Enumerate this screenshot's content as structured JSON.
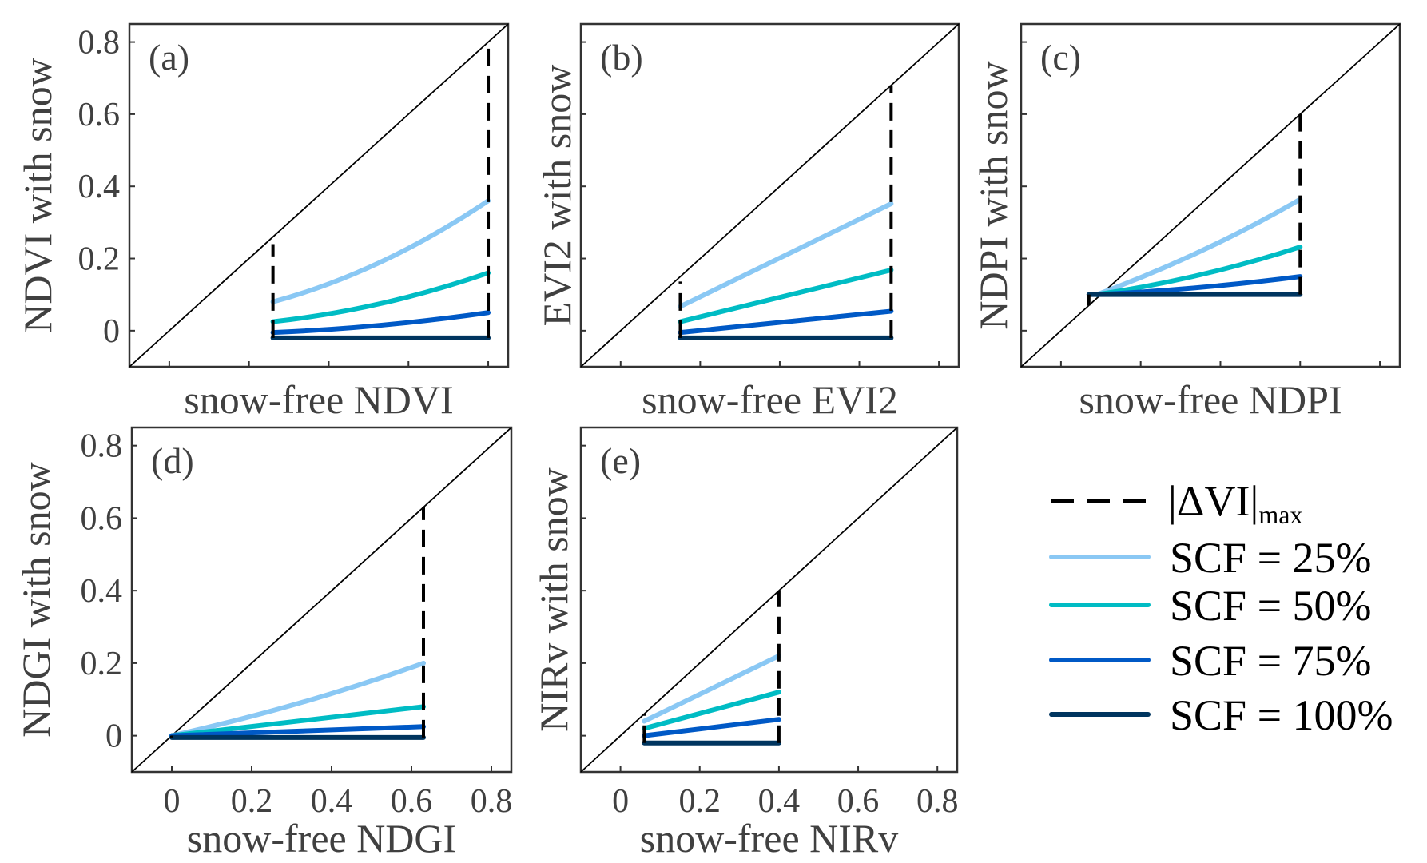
{
  "chart_data": [
    {
      "type": "line",
      "panel": "(a)",
      "xlabel": "snow-free NDVI",
      "ylabel": "NDVI with snow",
      "xlim": [
        -0.1,
        0.85
      ],
      "ylim": [
        -0.1,
        0.85
      ],
      "xticks": [
        0,
        0.2,
        0.4,
        0.6,
        0.8
      ],
      "yticks": [
        0,
        0.2,
        0.4,
        0.6,
        0.8
      ],
      "show_xtick_labels": false,
      "show_ytick_labels": true,
      "reference": "1:1",
      "dashed": [
        {
          "x": 0.26,
          "y": [
            -0.02,
            0.24
          ]
        },
        {
          "x": 0.8,
          "y": [
            -0.02,
            0.8
          ]
        }
      ],
      "series": [
        {
          "name": "SCF = 25%",
          "x": [
            0.26,
            0.53,
            0.8
          ],
          "y": [
            0.08,
            0.19,
            0.36
          ]
        },
        {
          "name": "SCF = 50%",
          "x": [
            0.26,
            0.53,
            0.8
          ],
          "y": [
            0.025,
            0.075,
            0.16
          ]
        },
        {
          "name": "SCF = 75%",
          "x": [
            0.26,
            0.53,
            0.8
          ],
          "y": [
            -0.005,
            0.015,
            0.05
          ]
        },
        {
          "name": "SCF = 100%",
          "x": [
            0.26,
            0.8
          ],
          "y": [
            -0.02,
            -0.02
          ]
        }
      ]
    },
    {
      "type": "line",
      "panel": "(b)",
      "xlabel": "snow-free EVI2",
      "ylabel": "EVI2 with snow",
      "xlim": [
        -0.1,
        0.85
      ],
      "ylim": [
        -0.1,
        0.85
      ],
      "xticks": [
        0,
        0.2,
        0.4,
        0.6,
        0.8
      ],
      "yticks": [
        0,
        0.2,
        0.4,
        0.6,
        0.8
      ],
      "show_xtick_labels": false,
      "show_ytick_labels": false,
      "reference": "1:1",
      "dashed": [
        {
          "x": 0.15,
          "y": [
            -0.02,
            0.136
          ]
        },
        {
          "x": 0.68,
          "y": [
            -0.02,
            0.68
          ]
        }
      ],
      "series": [
        {
          "name": "SCF = 25%",
          "x": [
            0.15,
            0.68
          ],
          "y": [
            0.067,
            0.352
          ]
        },
        {
          "name": "SCF = 50%",
          "x": [
            0.15,
            0.68
          ],
          "y": [
            0.025,
            0.168
          ]
        },
        {
          "name": "SCF = 75%",
          "x": [
            0.15,
            0.68
          ],
          "y": [
            -0.005,
            0.054
          ]
        },
        {
          "name": "SCF = 100%",
          "x": [
            0.15,
            0.68
          ],
          "y": [
            -0.02,
            -0.02
          ]
        }
      ]
    },
    {
      "type": "line",
      "panel": "(c)",
      "xlabel": "snow-free NDPI",
      "ylabel": "NDPI with snow",
      "xlim": [
        -0.1,
        0.85
      ],
      "ylim": [
        -0.1,
        0.85
      ],
      "xticks": [
        0,
        0.2,
        0.4,
        0.6,
        0.8
      ],
      "yticks": [
        0,
        0.2,
        0.4,
        0.6,
        0.8
      ],
      "show_xtick_labels": false,
      "show_ytick_labels": false,
      "reference": "1:1",
      "dashed": [
        {
          "x": 0.07,
          "y": [
            0.07,
            0.1
          ]
        },
        {
          "x": 0.6,
          "y": [
            0.1,
            0.6
          ]
        }
      ],
      "series": [
        {
          "name": "SCF = 25%",
          "x": [
            0.09,
            0.35,
            0.6
          ],
          "y": [
            0.1,
            0.22,
            0.364
          ]
        },
        {
          "name": "SCF = 50%",
          "x": [
            0.09,
            0.35,
            0.6
          ],
          "y": [
            0.1,
            0.155,
            0.232
          ]
        },
        {
          "name": "SCF = 75%",
          "x": [
            0.09,
            0.35,
            0.6
          ],
          "y": [
            0.1,
            0.12,
            0.15
          ]
        },
        {
          "name": "SCF = 100%",
          "x": [
            0.07,
            0.6
          ],
          "y": [
            0.1,
            0.1
          ]
        }
      ]
    },
    {
      "type": "line",
      "panel": "(d)",
      "xlabel": "snow-free NDGI",
      "ylabel": "NDGI  with snow",
      "xlim": [
        -0.1,
        0.85
      ],
      "ylim": [
        -0.1,
        0.85
      ],
      "xticks": [
        0,
        0.2,
        0.4,
        0.6,
        0.8
      ],
      "yticks": [
        0,
        0.2,
        0.4,
        0.6,
        0.8
      ],
      "show_xtick_labels": true,
      "show_ytick_labels": true,
      "reference": "1:1",
      "dashed": [
        {
          "x": 0.0,
          "y": [
            -0.005,
            0.0
          ]
        },
        {
          "x": 0.63,
          "y": [
            -0.005,
            0.63
          ]
        }
      ],
      "series": [
        {
          "name": "SCF = 25%",
          "x": [
            0.0,
            0.32,
            0.63
          ],
          "y": [
            0.0,
            0.09,
            0.2
          ]
        },
        {
          "name": "SCF = 50%",
          "x": [
            0.0,
            0.63
          ],
          "y": [
            0.0,
            0.08
          ]
        },
        {
          "name": "SCF = 75%",
          "x": [
            0.0,
            0.63
          ],
          "y": [
            0.0,
            0.025
          ]
        },
        {
          "name": "SCF = 100%",
          "x": [
            0.0,
            0.63
          ],
          "y": [
            -0.005,
            -0.005
          ]
        }
      ]
    },
    {
      "type": "line",
      "panel": "(e)",
      "xlabel": "snow-free NIRv",
      "ylabel": "NIRv with snow",
      "xlim": [
        -0.1,
        0.85
      ],
      "ylim": [
        -0.1,
        0.85
      ],
      "xticks": [
        0,
        0.2,
        0.4,
        0.6,
        0.8
      ],
      "yticks": [
        0,
        0.2,
        0.4,
        0.6,
        0.8
      ],
      "show_xtick_labels": true,
      "show_ytick_labels": false,
      "reference": "1:1",
      "dashed": [
        {
          "x": 0.06,
          "y": [
            -0.02,
            0.06
          ]
        },
        {
          "x": 0.4,
          "y": [
            -0.02,
            0.4
          ]
        }
      ],
      "series": [
        {
          "name": "SCF = 25%",
          "x": [
            0.06,
            0.4
          ],
          "y": [
            0.04,
            0.22
          ]
        },
        {
          "name": "SCF = 50%",
          "x": [
            0.06,
            0.4
          ],
          "y": [
            0.02,
            0.12
          ]
        },
        {
          "name": "SCF = 75%",
          "x": [
            0.06,
            0.4
          ],
          "y": [
            0.0,
            0.045
          ]
        },
        {
          "name": "SCF = 100%",
          "x": [
            0.06,
            0.4
          ],
          "y": [
            -0.02,
            -0.02
          ]
        }
      ]
    }
  ],
  "tick_labels": [
    "0",
    "0.2",
    "0.4",
    "0.6",
    "0.8"
  ],
  "legend": {
    "placement": "bottom-right",
    "dashed_label_main": "|ΔVI|",
    "dashed_label_sub": "max",
    "items": [
      {
        "label": "SCF = 25%",
        "color": "#8ac8f4"
      },
      {
        "label": "SCF = 50%",
        "color": "#00bcc4"
      },
      {
        "label": "SCF = 75%",
        "color": "#0059c6"
      },
      {
        "label": "SCF = 100%",
        "color": "#00355f"
      }
    ]
  }
}
